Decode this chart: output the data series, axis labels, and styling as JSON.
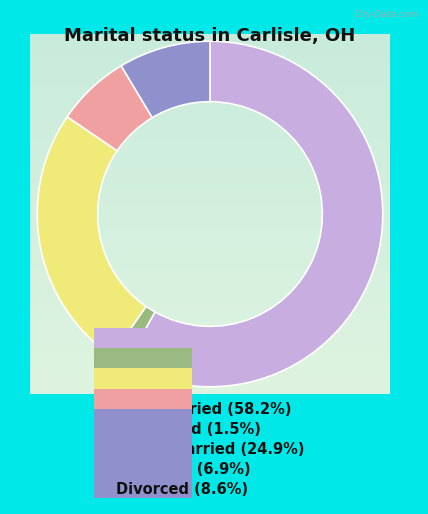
{
  "title": "Marital status in Carlisle, OH",
  "slices": [
    58.2,
    1.5,
    24.9,
    6.9,
    8.6
  ],
  "labels": [
    "Now married (58.2%)",
    "Separated (1.5%)",
    "Never married (24.9%)",
    "Widowed (6.9%)",
    "Divorced (8.6%)"
  ],
  "colors": [
    "#c8aee0",
    "#9aba82",
    "#f0ea78",
    "#f0a0a0",
    "#9090cc"
  ],
  "background_outer": "#00e8e8",
  "background_panel_top": "#cce8e0",
  "background_panel_bottom": "#d8f0d8",
  "title_fontsize": 13,
  "legend_fontsize": 10.5,
  "watermark": "City-Data.com",
  "start_angle": 90,
  "donut_width": 0.42
}
